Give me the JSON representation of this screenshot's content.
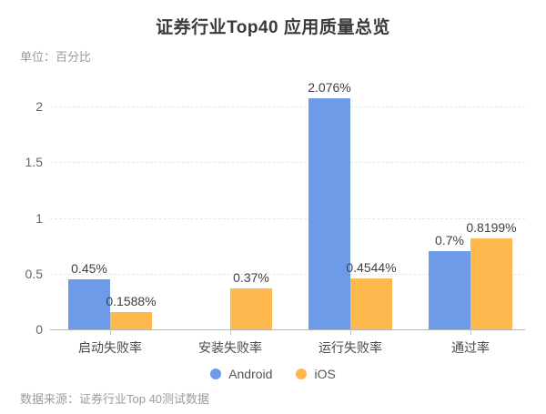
{
  "header": {
    "title": "证券行业Top40 应用质量总览",
    "unit_label": "单位：百分比"
  },
  "footer": {
    "source": "数据来源：证券行业Top 40测试数据"
  },
  "colors": {
    "android": "#6D9BE8",
    "ios": "#FDB84E",
    "grid": "#e4e4e4",
    "axis": "#b8b8b8",
    "title_text": "#3a3a3a",
    "muted_text": "#9b9b9b"
  },
  "legend": [
    {
      "label": "Android",
      "color": "#6D9BE8"
    },
    {
      "label": "iOS",
      "color": "#FDB84E"
    }
  ],
  "chart_data": {
    "type": "bar",
    "title": "证券行业Top40 应用质量总览",
    "unit": "百分比",
    "categories": [
      "启动失败率",
      "安装失败率",
      "运行失败率",
      "通过率"
    ],
    "series": [
      {
        "name": "Android",
        "color": "#6D9BE8",
        "values": [
          0.45,
          null,
          2.076,
          0.7
        ],
        "labels": [
          "0.45%",
          "",
          "2.076%",
          "0.7%"
        ]
      },
      {
        "name": "iOS",
        "color": "#FDB84E",
        "values": [
          0.1588,
          0.37,
          0.4544,
          0.8199
        ],
        "labels": [
          "0.1588%",
          "0.37%",
          "0.4544%",
          "0.8199%"
        ]
      }
    ],
    "xlabel": "",
    "ylabel": "百分比",
    "ylim": [
      0,
      2.2
    ],
    "yticks": [
      0,
      0.5,
      1,
      1.5,
      2
    ],
    "grid": "dashed-horizontal",
    "legend_position": "bottom",
    "source_note": "数据来源：证券行业Top 40测试数据"
  }
}
